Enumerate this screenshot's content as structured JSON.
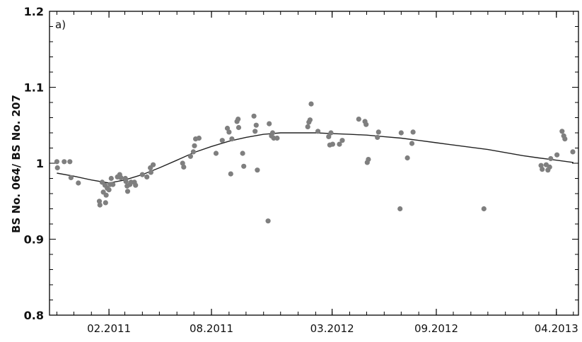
{
  "chart_data": {
    "type": "scatter",
    "panel_label": "a)",
    "ylabel": "BS No. 064/ BS No. 207",
    "xlabel": "",
    "xlim": [
      "2010-10-19",
      "2013-05-10"
    ],
    "ylim": [
      0.8,
      1.2
    ],
    "xticks": [
      {
        "date": "2011-02-01",
        "label": "02.2011"
      },
      {
        "date": "2011-08-01",
        "label": "08.2011"
      },
      {
        "date": "2012-03-01",
        "label": "03.2012"
      },
      {
        "date": "2012-09-01",
        "label": "09.2012"
      },
      {
        "date": "2013-04-01",
        "label": "04.2013"
      }
    ],
    "yticks": [
      {
        "value": 0.8,
        "label": "0.8"
      },
      {
        "value": 0.9,
        "label": "0.9"
      },
      {
        "value": 1.0,
        "label": "1"
      },
      {
        "value": 1.1,
        "label": "1.1"
      },
      {
        "value": 1.2,
        "label": "1.2"
      }
    ],
    "grid": false,
    "colors": {
      "points": "#7f7f7f",
      "line": "#222222",
      "axes": "#000000"
    },
    "series": [
      {
        "kind": "points",
        "x": [
          "2010-11-01",
          "2010-11-02",
          "2010-11-14",
          "2010-11-24",
          "2010-11-26",
          "2010-12-09",
          "2011-01-15",
          "2011-01-16",
          "2011-01-20",
          "2011-01-22",
          "2011-01-25",
          "2011-01-26",
          "2011-01-27",
          "2011-01-29",
          "2011-02-01",
          "2011-02-03",
          "2011-02-05",
          "2011-02-08",
          "2011-02-16",
          "2011-02-20",
          "2011-02-22",
          "2011-03-02",
          "2011-03-03",
          "2011-03-05",
          "2011-03-06",
          "2011-03-10",
          "2011-03-12",
          "2011-03-18",
          "2011-03-20",
          "2011-04-01",
          "2011-04-09",
          "2011-04-15",
          "2011-04-16",
          "2011-04-20",
          "2011-06-11",
          "2011-06-13",
          "2011-06-25",
          "2011-06-30",
          "2011-07-02",
          "2011-07-04",
          "2011-07-10",
          "2011-08-09",
          "2011-08-20",
          "2011-08-29",
          "2011-09-01",
          "2011-09-04",
          "2011-09-06",
          "2011-09-15",
          "2011-09-17",
          "2011-09-18",
          "2011-09-25",
          "2011-09-27",
          "2011-10-15",
          "2011-10-17",
          "2011-10-19",
          "2011-10-21",
          "2011-11-09",
          "2011-11-11",
          "2011-11-15",
          "2011-11-17",
          "2011-11-19",
          "2011-11-25",
          "2012-01-18",
          "2012-01-20",
          "2012-01-22",
          "2012-01-24",
          "2012-02-05",
          "2012-02-24",
          "2012-02-26",
          "2012-02-28",
          "2012-03-02",
          "2012-03-14",
          "2012-03-19",
          "2012-04-17",
          "2012-04-28",
          "2012-04-30",
          "2012-05-02",
          "2012-05-04",
          "2012-05-20",
          "2012-05-22",
          "2012-06-29",
          "2012-07-01",
          "2012-07-12",
          "2012-07-20",
          "2012-07-22",
          "2012-11-24",
          "2013-03-05",
          "2013-03-07",
          "2013-03-14",
          "2013-03-17",
          "2013-03-20",
          "2013-03-22",
          "2013-04-02",
          "2013-04-11",
          "2013-04-14",
          "2013-04-16",
          "2013-04-30"
        ],
        "y": [
          1.002,
          0.994,
          1.002,
          1.002,
          0.981,
          0.974,
          0.95,
          0.945,
          0.975,
          0.962,
          0.971,
          0.948,
          0.958,
          0.967,
          0.965,
          0.972,
          0.98,
          0.972,
          0.982,
          0.985,
          0.981,
          0.98,
          0.976,
          0.97,
          0.963,
          0.972,
          0.975,
          0.975,
          0.971,
          0.985,
          0.982,
          0.994,
          0.988,
          0.998,
          1.0,
          0.995,
          1.009,
          1.015,
          1.023,
          1.032,
          1.033,
          1.013,
          1.03,
          1.046,
          1.041,
          0.986,
          1.032,
          1.055,
          1.058,
          1.047,
          1.013,
          0.996,
          1.062,
          1.042,
          1.05,
          0.991,
          0.924,
          1.052,
          1.036,
          1.04,
          1.033,
          1.033,
          1.048,
          1.054,
          1.057,
          1.078,
          1.042,
          1.035,
          1.024,
          1.04,
          1.025,
          1.025,
          1.03,
          1.058,
          1.055,
          1.051,
          1.001,
          1.005,
          1.034,
          1.041,
          0.94,
          1.04,
          1.007,
          1.026,
          1.041,
          0.94,
          0.997,
          0.992,
          0.998,
          0.991,
          0.995,
          1.006,
          1.011,
          1.042,
          1.036,
          1.032,
          1.015
        ]
      },
      {
        "kind": "line",
        "x": [
          "2010-11-01",
          "2010-12-01",
          "2011-01-01",
          "2011-02-01",
          "2011-03-01",
          "2011-04-01",
          "2011-05-01",
          "2011-06-01",
          "2011-07-01",
          "2011-08-01",
          "2011-09-01",
          "2011-10-01",
          "2011-11-01",
          "2011-12-01",
          "2012-01-01",
          "2012-02-01",
          "2012-03-01",
          "2012-04-01",
          "2012-05-01",
          "2012-06-01",
          "2012-07-01",
          "2012-08-01",
          "2012-09-01",
          "2012-10-01",
          "2012-11-01",
          "2012-12-01",
          "2013-01-01",
          "2013-02-01",
          "2013-03-01",
          "2013-04-01",
          "2013-05-01"
        ],
        "y": [
          0.987,
          0.983,
          0.978,
          0.974,
          0.978,
          0.985,
          0.994,
          1.004,
          1.014,
          1.022,
          1.029,
          1.034,
          1.038,
          1.04,
          1.04,
          1.04,
          1.039,
          1.038,
          1.037,
          1.035,
          1.033,
          1.03,
          1.027,
          1.024,
          1.021,
          1.018,
          1.014,
          1.01,
          1.007,
          1.004,
          1.001
        ]
      }
    ]
  }
}
